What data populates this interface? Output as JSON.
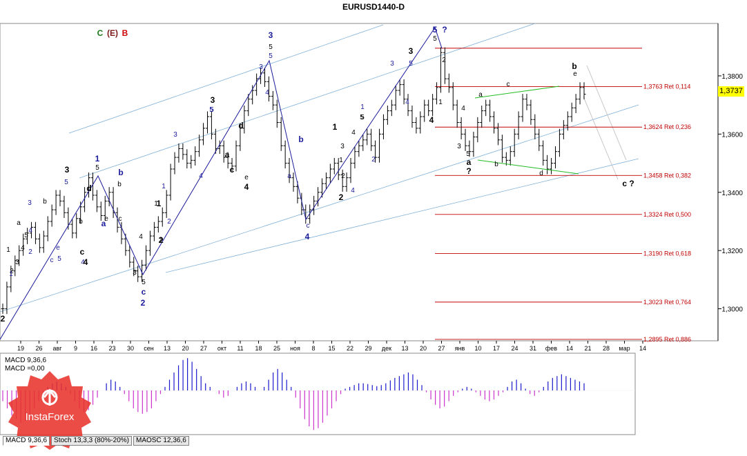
{
  "chart_data": [
    {
      "type": "candlestick",
      "title": "EURUSD1440-D",
      "legend_letters": [
        {
          "text": "C",
          "color": "#1a7a1a"
        },
        {
          "text": "(E)",
          "color": "#7a1a1a"
        },
        {
          "text": "B",
          "color": "#cc0000"
        }
      ],
      "y_ticks": [
        "1,3800",
        "1,3600",
        "1,3400",
        "1,3200",
        "1,3000"
      ],
      "ylim": [
        1.289,
        1.398
      ],
      "x_ticks": [
        "19",
        "26",
        "авг",
        "9",
        "16",
        "23",
        "30",
        "сен",
        "13",
        "20",
        "27",
        "окт",
        "11",
        "18",
        "25",
        "ноя",
        "8",
        "15",
        "22",
        "29",
        "дек",
        "13",
        "20",
        "27",
        "янв",
        "10",
        "17",
        "24",
        "31",
        "фев",
        "14",
        "21",
        "28",
        "мар",
        "14"
      ],
      "current_price": "1,3737",
      "fib_levels": [
        {
          "price": 1.3895,
          "label": ""
        },
        {
          "price": 1.3763,
          "label": "1,3763 Ret 0,114"
        },
        {
          "price": 1.3624,
          "label": "1,3624 Ret 0,236"
        },
        {
          "price": 1.3458,
          "label": "1,3458 Ret 0,382"
        },
        {
          "price": 1.3324,
          "label": "1,3324 Ret 0,500"
        },
        {
          "price": 1.319,
          "label": "1,3190 Ret 0,618"
        },
        {
          "price": 1.3023,
          "label": "1,3023 Ret 0,764"
        },
        {
          "price": 1.2895,
          "label": "1,2895 Ret 0,886"
        }
      ],
      "price_path": [
        1.3,
        1.3075,
        1.313,
        1.3165,
        1.32,
        1.324,
        1.326,
        1.328,
        1.324,
        1.321,
        1.325,
        1.33,
        1.334,
        1.339,
        1.337,
        1.333,
        1.329,
        1.326,
        1.331,
        1.335,
        1.34,
        1.345,
        1.339,
        1.335,
        1.332,
        1.337,
        1.34,
        1.333,
        1.328,
        1.324,
        1.32,
        1.316,
        1.313,
        1.311,
        1.315,
        1.32,
        1.325,
        1.328,
        1.33,
        1.333,
        1.339,
        1.348,
        1.352,
        1.355,
        1.353,
        1.35,
        1.351,
        1.354,
        1.358,
        1.362,
        1.366,
        1.36,
        1.355,
        1.356,
        1.352,
        1.35,
        1.349,
        1.356,
        1.362,
        1.368,
        1.372,
        1.375,
        1.379,
        1.381,
        1.378,
        1.373,
        1.37,
        1.364,
        1.356,
        1.35,
        1.345,
        1.342,
        1.338,
        1.334,
        1.331,
        1.334,
        1.337,
        1.34,
        1.343,
        1.345,
        1.348,
        1.35,
        1.346,
        1.342,
        1.345,
        1.35,
        1.354,
        1.356,
        1.358,
        1.36,
        1.356,
        1.352,
        1.36,
        1.365,
        1.368,
        1.37,
        1.375,
        1.377,
        1.372,
        1.368,
        1.364,
        1.362,
        1.366,
        1.37,
        1.368,
        1.372,
        1.376,
        1.388,
        1.379,
        1.376,
        1.37,
        1.364,
        1.36,
        1.356,
        1.354,
        1.359,
        1.364,
        1.368,
        1.37,
        1.366,
        1.362,
        1.358,
        1.352,
        1.351,
        1.354,
        1.36,
        1.366,
        1.372,
        1.37,
        1.365,
        1.36,
        1.356,
        1.351,
        1.348,
        1.35,
        1.354,
        1.36,
        1.363,
        1.366,
        1.369,
        1.372,
        1.376,
        1.3737
      ],
      "macd": {
        "label_line1": "MACD 9,36,6",
        "label_line2": "MACD =0,00",
        "values": [
          -0.3,
          -0.5,
          -0.7,
          -0.8,
          -0.9,
          -0.85,
          -0.7,
          -0.5,
          -0.3,
          -0.1,
          0.1,
          0.2,
          0.25,
          0.2,
          0.1,
          -0.1,
          -0.3,
          -0.5,
          -0.6,
          -0.55,
          -0.4,
          -0.2,
          0.0,
          0.2,
          0.3,
          0.25,
          0.1,
          -0.1,
          -0.3,
          -0.5,
          -0.6,
          -0.65,
          -0.6,
          -0.5,
          -0.3,
          -0.1,
          0.1,
          0.3,
          0.5,
          0.7,
          0.85,
          0.9,
          0.8,
          0.6,
          0.4,
          0.2,
          0.1,
          0.0,
          -0.1,
          -0.2,
          -0.15,
          0.0,
          0.1,
          0.2,
          0.25,
          0.2,
          0.1,
          0.0,
          0.1,
          0.3,
          0.5,
          0.6,
          0.5,
          0.3,
          0.1,
          -0.2,
          -0.5,
          -0.8,
          -1.0,
          -1.1,
          -1.05,
          -0.9,
          -0.7,
          -0.5,
          -0.3,
          -0.1,
          0.05,
          0.1,
          0.15,
          0.2,
          0.2,
          0.18,
          0.15,
          0.12,
          0.15,
          0.2,
          0.28,
          0.35,
          0.4,
          0.45,
          0.5,
          0.45,
          0.3,
          0.15,
          -0.05,
          -0.25,
          -0.4,
          -0.5,
          -0.45,
          -0.3,
          -0.15,
          -0.05,
          0.05,
          0.1,
          0.05,
          -0.05,
          -0.15,
          -0.25,
          -0.3,
          -0.25,
          -0.15,
          -0.05,
          0.1,
          0.25,
          0.3,
          0.2,
          0.05,
          -0.1,
          -0.15,
          -0.05,
          0.1,
          0.25,
          0.35,
          0.4,
          0.45,
          0.4,
          0.35,
          0.3,
          0.25,
          0.2
        ]
      },
      "wave_labels": [
        {
          "text": "2",
          "color": "#000000",
          "bold": true
        },
        {
          "text": "1",
          "color": "#000000"
        },
        {
          "text": "2",
          "color": "#000000"
        },
        {
          "text": "3",
          "color": "#000000"
        },
        {
          "text": "4",
          "color": "#000000"
        },
        {
          "text": "5",
          "color": "#000000"
        },
        {
          "text": "a",
          "color": "#000000"
        },
        {
          "text": "1",
          "color": "#1a1a9a"
        },
        {
          "text": "2",
          "color": "#1a1a9a"
        },
        {
          "text": "3",
          "color": "#1a1a9a"
        },
        {
          "text": "4",
          "color": "#1a1a9a"
        },
        {
          "text": "5",
          "color": "#1a1a9a"
        },
        {
          "text": "b",
          "color": "#000000"
        },
        {
          "text": "c",
          "color": "#1a1a9a"
        },
        {
          "text": "e",
          "color": "#1a1a9a"
        },
        {
          "text": "3",
          "color": "#000000",
          "bold": true
        },
        {
          "text": "5",
          "color": "#1a1a9a"
        },
        {
          "text": "4",
          "color": "#1a1a9a"
        },
        {
          "text": "d",
          "color": "#000000",
          "bold": true
        },
        {
          "text": "b",
          "color": "#000000"
        },
        {
          "text": "c",
          "color": "#000000",
          "bold": true
        },
        {
          "text": "4",
          "color": "#000000",
          "bold": true
        },
        {
          "text": "1",
          "color": "#1a1a9a",
          "bold": true
        },
        {
          "text": "5",
          "color": "#000000"
        },
        {
          "text": "b",
          "color": "#1a1a9a",
          "bold": true
        },
        {
          "text": "a",
          "color": "#1a1a9a",
          "bold": true
        },
        {
          "text": "e",
          "color": "#000000"
        },
        {
          "text": "b",
          "color": "#000000"
        },
        {
          "text": "c",
          "color": "#000000"
        },
        {
          "text": "1",
          "color": "#000000"
        },
        {
          "text": "2",
          "color": "#000000"
        },
        {
          "text": "3",
          "color": "#000000"
        },
        {
          "text": "4",
          "color": "#000000"
        },
        {
          "text": "5",
          "color": "#000000"
        },
        {
          "text": "c",
          "color": "#1a1a9a",
          "bold": true
        },
        {
          "text": "2",
          "color": "#1a1a9a",
          "bold": true
        },
        {
          "text": "1",
          "color": "#000000",
          "bold": true
        },
        {
          "text": "2",
          "color": "#000000",
          "bold": true
        },
        {
          "text": "1",
          "color": "#1a1a9a"
        },
        {
          "text": "2",
          "color": "#1a1a9a"
        },
        {
          "text": "3",
          "color": "#1a1a9a"
        },
        {
          "text": "4",
          "color": "#1a1a9a"
        },
        {
          "text": "5",
          "color": "#1a1a9a"
        },
        {
          "text": "3",
          "color": "#000000",
          "bold": true
        },
        {
          "text": "5",
          "color": "#1a1a9a"
        },
        {
          "text": "c",
          "color": "#000000",
          "bold": true
        },
        {
          "text": "d",
          "color": "#000000",
          "bold": true
        },
        {
          "text": "a",
          "color": "#000000",
          "bold": true
        },
        {
          "text": "e",
          "color": "#000000"
        },
        {
          "text": "4",
          "color": "#000000",
          "bold": true
        },
        {
          "text": "3",
          "color": "#1a1a9a",
          "bold": true
        },
        {
          "text": "5",
          "color": "#000000"
        },
        {
          "text": "5",
          "color": "#1a1a9a"
        },
        {
          "text": "3",
          "color": "#1a1a9a"
        },
        {
          "text": "4",
          "color": "#1a1a9a"
        },
        {
          "text": "b",
          "color": "#1a1a9a",
          "bold": true
        },
        {
          "text": "a",
          "color": "#1a1a9a"
        },
        {
          "text": "c",
          "color": "#1a1a9a"
        },
        {
          "text": "4",
          "color": "#1a1a9a",
          "bold": true
        },
        {
          "text": "1",
          "color": "#000000",
          "bold": true
        },
        {
          "text": "2",
          "color": "#000000",
          "bold": true
        },
        {
          "text": "1",
          "color": "#000000"
        },
        {
          "text": "2",
          "color": "#000000"
        },
        {
          "text": "3",
          "color": "#000000"
        },
        {
          "text": "4",
          "color": "#000000"
        },
        {
          "text": "5",
          "color": "#000000"
        },
        {
          "text": "1",
          "color": "#1a1a9a"
        },
        {
          "text": "2",
          "color": "#1a1a9a"
        },
        {
          "text": "4",
          "color": "#1a1a9a"
        },
        {
          "text": "5",
          "color": "#000000"
        },
        {
          "text": "3",
          "color": "#000000",
          "bold": true
        },
        {
          "text": "3",
          "color": "#1a1a9a"
        },
        {
          "text": "5",
          "color": "#1a1a9a"
        },
        {
          "text": "4",
          "color": "#1a1a9a"
        },
        {
          "text": "5",
          "color": "#1a1a9a",
          "bold": true
        },
        {
          "text": "?",
          "color": "#1a1a9a",
          "bold": true
        },
        {
          "text": "5",
          "color": "#000000"
        },
        {
          "text": "1",
          "color": "#000000"
        },
        {
          "text": "2",
          "color": "#000000"
        },
        {
          "text": "4",
          "color": "#000000",
          "bold": true
        },
        {
          "text": "4",
          "color": "#000000"
        },
        {
          "text": "3",
          "color": "#000000"
        },
        {
          "text": "5",
          "color": "#000000"
        },
        {
          "text": "a",
          "color": "#000000",
          "bold": true
        },
        {
          "text": "?",
          "color": "#000000",
          "bold": true
        },
        {
          "text": "a",
          "color": "#000000"
        },
        {
          "text": "c",
          "color": "#000000"
        },
        {
          "text": "b",
          "color": "#000000"
        },
        {
          "text": "d",
          "color": "#000000"
        },
        {
          "text": "b",
          "color": "#000000",
          "bold": true
        },
        {
          "text": "e",
          "color": "#000000"
        },
        {
          "text": "c ?",
          "color": "#000000",
          "bold": true
        }
      ]
    }
  ],
  "logo": {
    "text": "InstaForex",
    "color": "#e8332c"
  },
  "tabs": [
    "MACD 9,36,6",
    "Stoch 13,3,3 (80%-20%)",
    "MAOSC 12,36,6"
  ]
}
